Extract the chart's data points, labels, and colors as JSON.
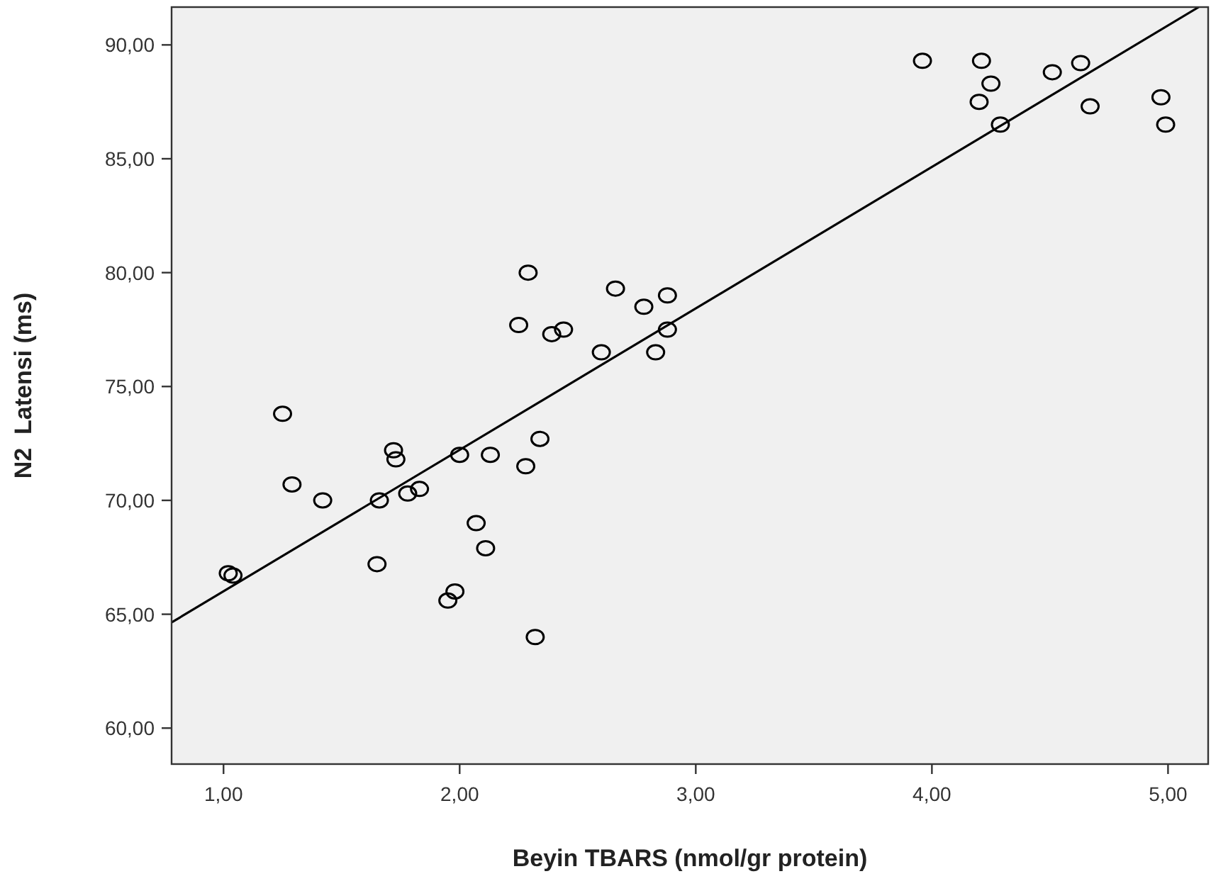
{
  "chart_data": {
    "type": "scatter",
    "xlabel": "Beyin TBARS (nmol/gr protein)",
    "ylabel": "N2  Latensi (ms)",
    "xlim": [
      0.78,
      5.17
    ],
    "ylim": [
      58.42,
      91.66
    ],
    "xticks": [
      {
        "value": 1,
        "label": "1,00"
      },
      {
        "value": 2,
        "label": "2,00"
      },
      {
        "value": 3,
        "label": "3,00"
      },
      {
        "value": 4,
        "label": "4,00"
      },
      {
        "value": 5,
        "label": "5,00"
      }
    ],
    "yticks": [
      {
        "value": 60,
        "label": "60,00"
      },
      {
        "value": 65,
        "label": "65,00"
      },
      {
        "value": 70,
        "label": "70,00"
      },
      {
        "value": 75,
        "label": "75,00"
      },
      {
        "value": 80,
        "label": "80,00"
      },
      {
        "value": 85,
        "label": "85,00"
      },
      {
        "value": 90,
        "label": "90,00"
      }
    ],
    "grid": false,
    "marker": "circle",
    "series": [
      {
        "color": "#000000",
        "x": [
          1.02,
          1.04,
          1.25,
          1.29,
          1.42,
          1.65,
          1.66,
          1.72,
          1.73,
          1.78,
          1.83,
          1.95,
          1.98,
          2.0,
          2.07,
          2.11,
          2.13,
          2.25,
          2.28,
          2.29,
          2.32,
          2.34,
          2.39,
          2.44,
          2.6,
          2.66,
          2.78,
          2.83,
          2.88,
          2.88,
          3.96,
          4.21,
          4.25,
          4.2,
          4.29,
          4.51,
          4.63,
          4.67,
          4.97,
          4.99
        ],
        "values": [
          66.8,
          66.7,
          73.8,
          70.7,
          70.0,
          67.2,
          70.0,
          72.2,
          71.8,
          70.3,
          70.5,
          65.6,
          66.0,
          72.0,
          69.0,
          67.9,
          72.0,
          77.7,
          71.5,
          80.0,
          64.0,
          72.7,
          77.3,
          77.5,
          76.5,
          79.3,
          78.5,
          76.5,
          79.0,
          77.5,
          89.3,
          89.3,
          88.3,
          87.5,
          86.5,
          88.8,
          89.2,
          87.3,
          87.7,
          86.5
        ]
      },
      {
        "type": "line",
        "marker": "none",
        "color": "#000000",
        "x": [
          0.78,
          5.13
        ],
        "values": [
          64.64,
          91.66
        ]
      }
    ]
  }
}
